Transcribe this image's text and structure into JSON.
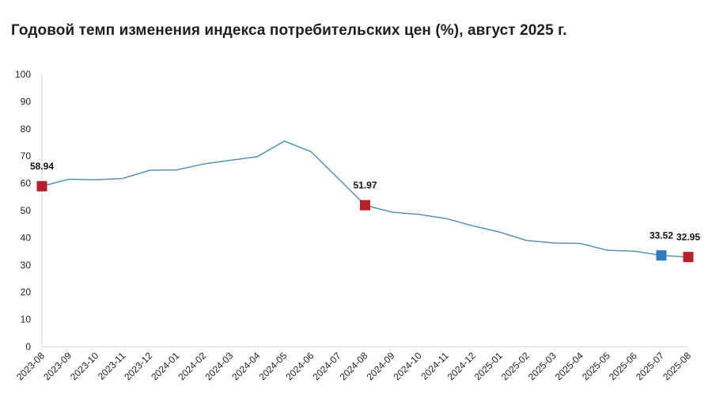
{
  "chart_data": {
    "type": "line",
    "title": "Годовой темп изменения индекса потребительских цен (%), август 2025 г.",
    "xlabel": "",
    "ylabel": "",
    "ylim": [
      0,
      100
    ],
    "yticks": [
      0,
      10,
      20,
      30,
      40,
      50,
      60,
      70,
      80,
      90,
      100
    ],
    "grid": false,
    "categories": [
      "2023-08",
      "2023-09",
      "2023-10",
      "2023-11",
      "2023-12",
      "2024-01",
      "2024-02",
      "2024-03",
      "2024-04",
      "2024-05",
      "2024-06",
      "2024-07",
      "2024-08",
      "2024-09",
      "2024-10",
      "2024-11",
      "2024-12",
      "2025-01",
      "2025-02",
      "2025-03",
      "2025-04",
      "2025-05",
      "2025-06",
      "2025-07",
      "2025-08"
    ],
    "series": [
      {
        "values": [
          58.94,
          61.5,
          61.3,
          61.8,
          64.8,
          64.9,
          67.1,
          68.5,
          69.8,
          75.5,
          71.6,
          61.8,
          51.97,
          49.4,
          48.6,
          47.1,
          44.4,
          42.1,
          39.0,
          38.1,
          37.9,
          35.4,
          35.1,
          33.52,
          32.95
        ],
        "color": "#4a8bb0"
      }
    ],
    "highlights": [
      {
        "index": 0,
        "label": "58.94",
        "color": "#b5202a"
      },
      {
        "index": 12,
        "label": "51.97",
        "color": "#b5202a"
      },
      {
        "index": 23,
        "label": "33.52",
        "color": "#2e7bc0"
      },
      {
        "index": 24,
        "label": "32.95",
        "color": "#b5202a"
      }
    ]
  }
}
